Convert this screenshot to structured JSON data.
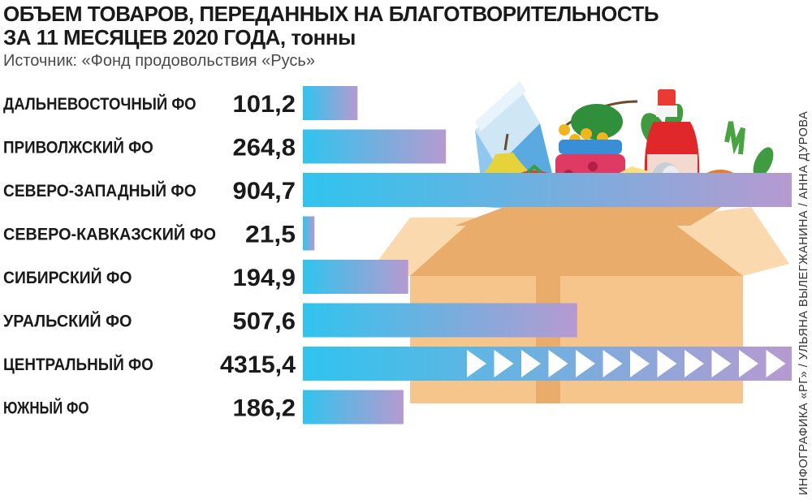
{
  "header": {
    "title_line1": "ОБЪЕМ ТОВАРОВ, ПЕРЕДАННЫХ НА БЛАГОТВОРИТЕЛЬНОСТЬ",
    "title_line2": "ЗА 11 МЕСЯЦЕВ 2020 ГОДА,",
    "unit": "тонны",
    "source": "Источник: «Фонд продовольствия «Русь»",
    "credit": "ИНФОГРАФИКА «РГ» / УЛЬЯНА ВЫЛЕГЖАНИНА / АННА ДУРОВА"
  },
  "colors": {
    "bar_start": "#2fc4ee",
    "bar_end": "#b69ad0",
    "box": "#f6c58c",
    "box_dark": "#e9ac6b",
    "box_light": "#fbd9ae"
  },
  "illustration": {
    "icons": [
      "milk-carton-icon",
      "pear-icon",
      "sea-buckthorn-icon",
      "jam-jar-icon",
      "cheese-icon",
      "can-icon",
      "tomato-icon",
      "ketchup-bottle-icon",
      "carrot-icon",
      "herbs-icon",
      "cardboard-box-icon"
    ]
  },
  "chart_data": {
    "type": "bar",
    "orientation": "horizontal",
    "title": "ОБЪЕМ ТОВАРОВ, ПЕРЕДАННЫХ НА БЛАГОТВОРИТЕЛЬНОСТЬ ЗА 11 МЕСЯЦЕВ 2020 ГОДА, тонны",
    "categories": [
      "ДАЛЬНЕВОСТОЧНЫЙ ФО",
      "ПРИВОЛЖСКИЙ ФО",
      "СЕВЕРО-ЗАПАДНЫЙ ФО",
      "СЕВЕРО-КАВКАЗСКИЙ ФО",
      "СИБИРСКИЙ ФО",
      "УРАЛЬСКИЙ ФО",
      "ЦЕНТРАЛЬНЫЙ ФО",
      "ЮЖНЫЙ ФО"
    ],
    "value_labels": [
      "101,2",
      "264,8",
      "904,7",
      "21,5",
      "194,9",
      "507,6",
      "4315,4",
      "186,2"
    ],
    "values": [
      101.2,
      264.8,
      904.7,
      21.5,
      194.9,
      507.6,
      4315.4,
      186.2
    ],
    "xlim": [
      0,
      904.7
    ],
    "truncated_category": "ЦЕНТРАЛЬНЫЙ ФО",
    "grid": false,
    "legend": "none"
  }
}
